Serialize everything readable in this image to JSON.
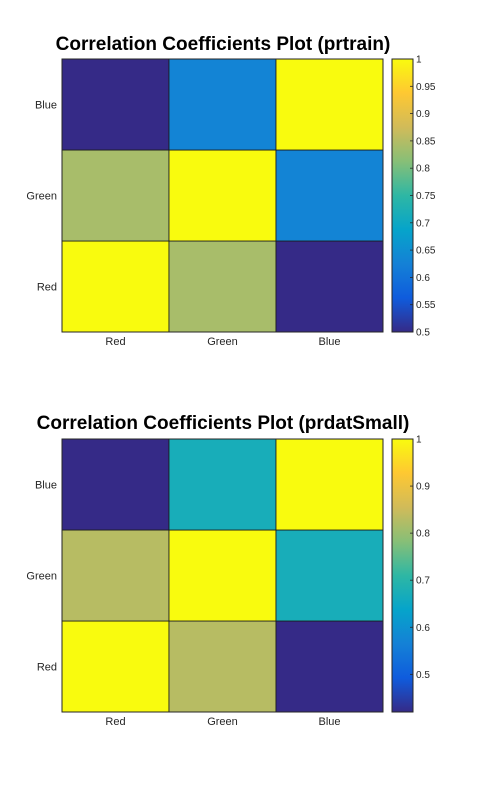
{
  "chart_data": [
    {
      "type": "heatmap",
      "title": "Correlation Coefficients Plot (prtrain)",
      "x_categories": [
        "Red",
        "Green",
        "Blue"
      ],
      "y_categories": [
        "Red",
        "Green",
        "Blue"
      ],
      "values": [
        [
          1.0,
          0.84,
          0.5
        ],
        [
          0.84,
          1.0,
          0.63
        ],
        [
          0.5,
          0.63,
          1.0
        ]
      ],
      "colorbar": {
        "min": 0.5,
        "max": 1.0,
        "ticks": [
          "0.5",
          "0.55",
          "0.6",
          "0.65",
          "0.7",
          "0.75",
          "0.8",
          "0.85",
          "0.9",
          "0.95",
          "1"
        ]
      },
      "colormap": "parula"
    },
    {
      "type": "heatmap",
      "title": "Correlation Coefficients Plot (prdatSmall)",
      "x_categories": [
        "Red",
        "Green",
        "Blue"
      ],
      "y_categories": [
        "Red",
        "Green",
        "Blue"
      ],
      "values": [
        [
          1.0,
          0.83,
          0.42
        ],
        [
          0.83,
          1.0,
          0.67
        ],
        [
          0.42,
          0.67,
          1.0
        ]
      ],
      "colorbar": {
        "min": 0.42,
        "max": 1.0,
        "ticks": [
          "0.5",
          "0.6",
          "0.7",
          "0.8",
          "0.9",
          "1"
        ]
      },
      "colormap": "parula"
    }
  ]
}
